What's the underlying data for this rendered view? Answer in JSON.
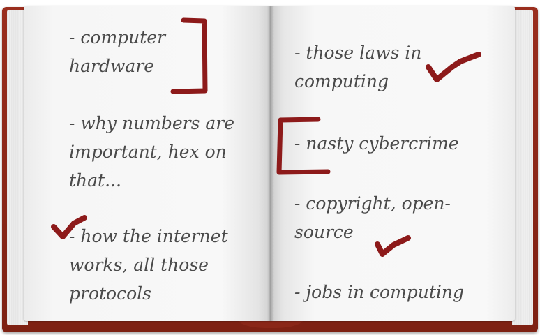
{
  "left_page": {
    "notes": [
      {
        "lines": [
          "- computer",
          "hardware"
        ]
      },
      {
        "lines": [
          "- why numbers are",
          "important, hex on",
          "that..."
        ]
      },
      {
        "lines": [
          "- how the internet",
          "works, all those",
          "protocols"
        ]
      }
    ]
  },
  "right_page": {
    "notes": [
      {
        "lines": [
          "- those laws in",
          "computing"
        ]
      },
      {
        "lines": [
          "- nasty cybercrime"
        ]
      },
      {
        "lines": [
          "- copyright, open-",
          "source"
        ]
      },
      {
        "lines": [
          "- jobs in computing"
        ]
      }
    ]
  },
  "colors": {
    "ink": "#4a4a4a",
    "marker": "#8d1a1a",
    "cover": "#8a2718",
    "page": "#f6f6f6"
  },
  "icons": [
    "checkmark-icon",
    "bracket-icon"
  ]
}
